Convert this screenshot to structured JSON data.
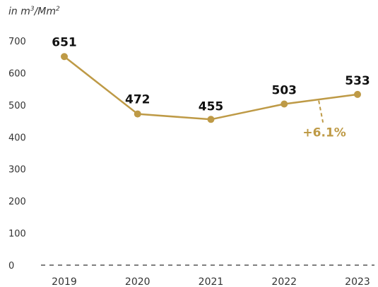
{
  "unit_label": {
    "prefix": "in m",
    "sup1": "3",
    "mid": "/Mm",
    "sup2": "2"
  },
  "colors": {
    "line": "#BE9A46",
    "axis": "#333333",
    "annotation": "#BE9A46"
  },
  "chart_data": {
    "type": "line",
    "x": [
      "2019",
      "2020",
      "2021",
      "2022",
      "2023"
    ],
    "values": [
      651,
      472,
      455,
      503,
      533
    ],
    "data_labels": [
      "651",
      "472",
      "455",
      "503",
      "533"
    ],
    "ylim": [
      0,
      700
    ],
    "yticks": [
      0,
      100,
      200,
      300,
      400,
      500,
      600,
      700
    ],
    "grid": false,
    "annotation": {
      "text": "+6.1%",
      "from_category": "2022",
      "to_category": "2023"
    }
  }
}
